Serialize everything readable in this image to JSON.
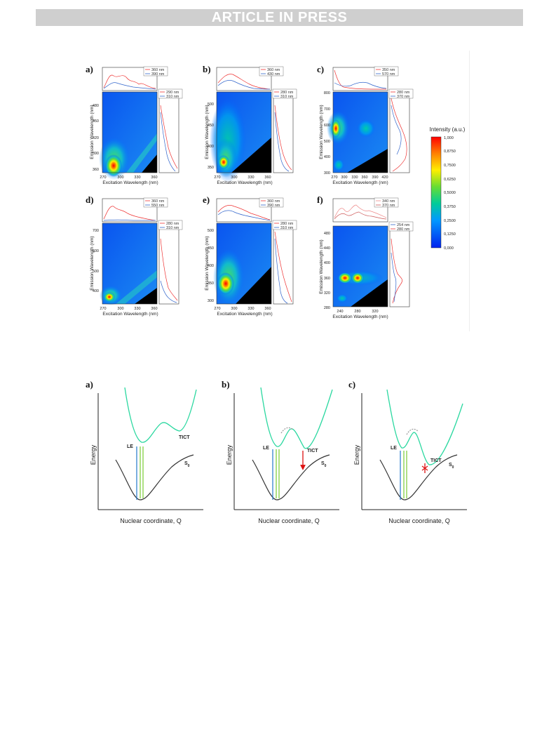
{
  "header": {
    "banner": "ARTICLE IN PRESS"
  },
  "figure_top": {
    "colorbar": {
      "title": "Intensity (a.u.)",
      "ticks": [
        "1,000",
        "0,8750",
        "0,7500",
        "0,6250",
        "0,5000",
        "0,3750",
        "0,2500",
        "0,1250",
        "0,000"
      ]
    },
    "panels": [
      {
        "label": "a)",
        "xlabel": "Excitation Wavelength (nm)",
        "ylabel": "Emission Wavelength (nm)",
        "xticks": [
          "270",
          "300",
          "330",
          "360"
        ],
        "yticks": [
          "480",
          "450",
          "420",
          "390",
          "360"
        ],
        "top_legend": [
          "360 nm",
          "390 nm"
        ],
        "side_legend": [
          "290 nm",
          "310 nm"
        ]
      },
      {
        "label": "b)",
        "xlabel": "Excitation Wavelength (nm)",
        "ylabel": "Emission Wavelength (nm)",
        "xticks": [
          "270",
          "300",
          "330",
          "360"
        ],
        "yticks": [
          "500",
          "450",
          "400",
          "350"
        ],
        "top_legend": [
          "360 nm",
          "430 nm"
        ],
        "side_legend": [
          "280 nm",
          "310 nm"
        ]
      },
      {
        "label": "c)",
        "xlabel": "Excitation Wavelength (nm)",
        "ylabel": "Emission Wavelength (nm)",
        "xticks": [
          "270",
          "300",
          "330",
          "360",
          "390",
          "420"
        ],
        "yticks": [
          "800",
          "700",
          "600",
          "500",
          "400",
          "300"
        ],
        "top_legend": [
          "350 nm",
          "570 nm"
        ],
        "side_legend": [
          "280 nm",
          "370 nm"
        ]
      },
      {
        "label": "d)",
        "xlabel": "Excitation Wavelength (nm)",
        "ylabel": "Emission Wavelength (nm)",
        "xticks": [
          "270",
          "300",
          "330",
          "360"
        ],
        "yticks": [
          "700",
          "600",
          "500",
          "400"
        ],
        "top_legend": [
          "360 nm",
          "550 nm"
        ],
        "side_legend": [
          "280 nm",
          "310 nm"
        ]
      },
      {
        "label": "e)",
        "xlabel": "Excitation Wavelength (nm)",
        "ylabel": "Emission Wavelength (nm)",
        "xticks": [
          "270",
          "300",
          "330",
          "360"
        ],
        "yticks": [
          "500",
          "450",
          "400",
          "350",
          "300"
        ],
        "top_legend": [
          "360 nm",
          "390 nm"
        ],
        "side_legend": [
          "280 nm",
          "310 nm"
        ]
      },
      {
        "label": "f)",
        "xlabel": "Excitation Wavelength (nm)",
        "ylabel": "Emission Wavelength (nm)",
        "xticks": [
          "240",
          "280",
          "320"
        ],
        "yticks": [
          "480",
          "440",
          "400",
          "360",
          "320",
          "280"
        ],
        "top_legend": [
          "340 nm",
          "370 nm"
        ],
        "side_legend": [
          "254 nm",
          "280 nm"
        ]
      }
    ]
  },
  "figure_bottom": {
    "panels": [
      {
        "label": "a)",
        "ylabel": "Energy",
        "xlabel": "Nuclear coordinate, Q",
        "le": "LE",
        "tict": "TICT",
        "s0": "S",
        "s0_sub": "0"
      },
      {
        "label": "b)",
        "ylabel": "Energy",
        "xlabel": "Nuclear coordinate, Q",
        "le": "LE",
        "tict": "TICT",
        "s0": "S",
        "s0_sub": "0"
      },
      {
        "label": "c)",
        "ylabel": "Energy",
        "xlabel": "Nuclear coordinate, Q",
        "le": "LE",
        "tict": "TICT",
        "s0": "S",
        "s0_sub": "0"
      }
    ]
  }
}
